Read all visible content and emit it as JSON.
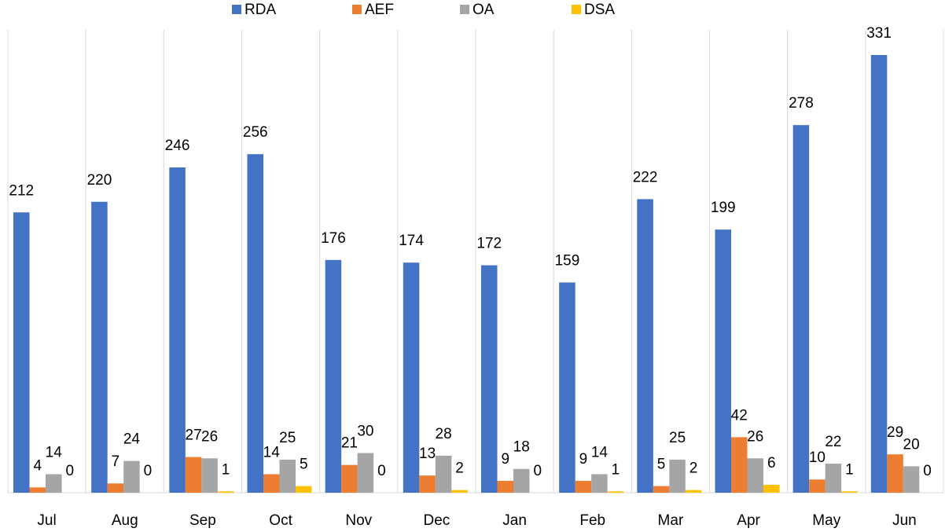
{
  "chart_data": {
    "type": "bar",
    "categories": [
      "Jul",
      "Aug",
      "Sep",
      "Oct",
      "Nov",
      "Dec",
      "Jan",
      "Feb",
      "Mar",
      "Apr",
      "May",
      "Jun"
    ],
    "series": [
      {
        "name": "RDA",
        "color": "#4472c4",
        "values": [
          212,
          220,
          246,
          256,
          176,
          174,
          172,
          159,
          222,
          199,
          278,
          331
        ]
      },
      {
        "name": "AEF",
        "color": "#ed7d31",
        "values": [
          4,
          7,
          27,
          14,
          21,
          13,
          9,
          9,
          5,
          42,
          10,
          29
        ]
      },
      {
        "name": "OA",
        "color": "#a5a5a5",
        "values": [
          14,
          24,
          26,
          25,
          30,
          28,
          18,
          14,
          25,
          26,
          22,
          20
        ]
      },
      {
        "name": "DSA",
        "color": "#ffc000",
        "values": [
          0,
          0,
          1,
          5,
          0,
          2,
          0,
          1,
          2,
          6,
          1,
          0
        ]
      }
    ],
    "legend": "top"
  }
}
